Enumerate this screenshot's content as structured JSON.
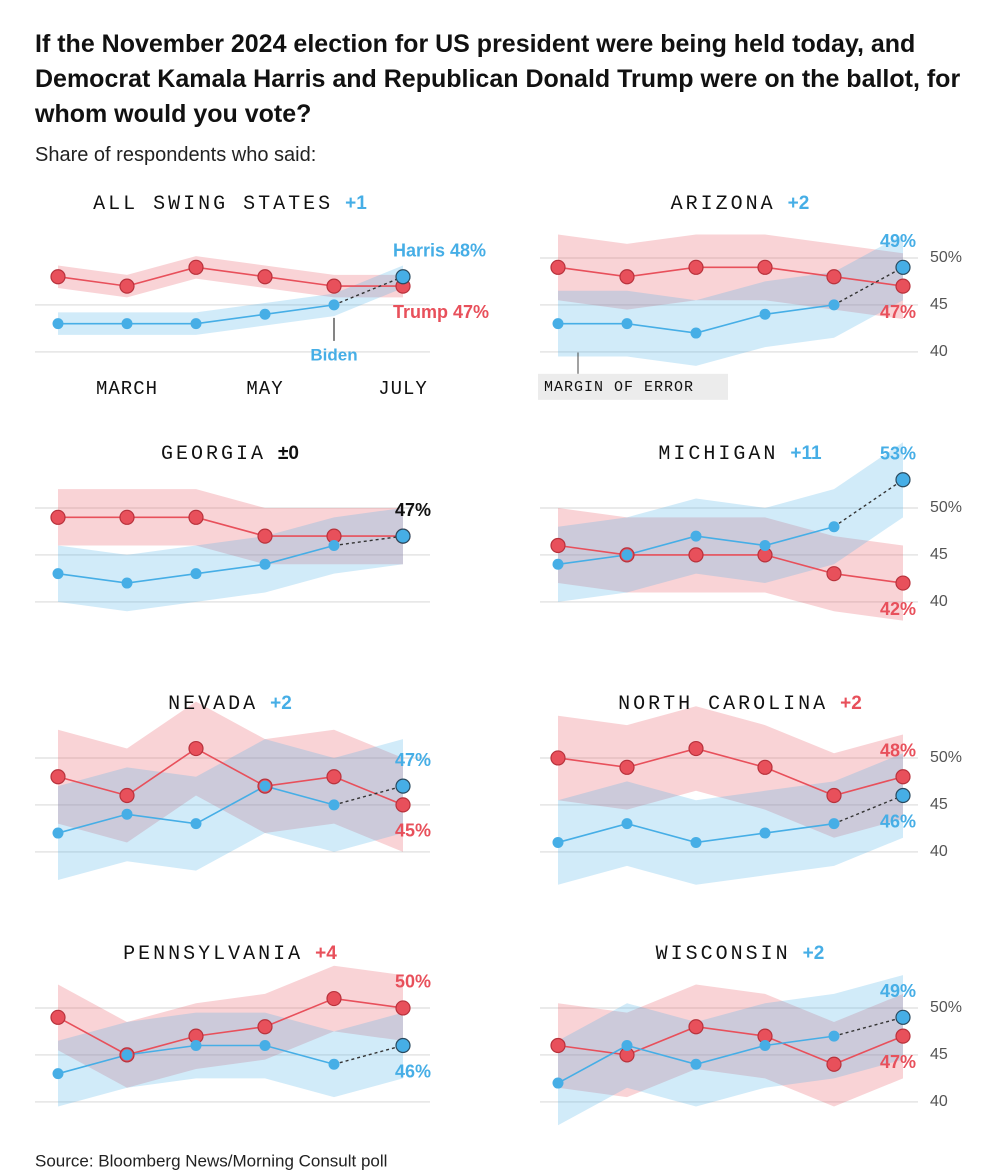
{
  "title": "If the November 2024 election for US president were being held today, and Democrat Kamala Harris and Republican Donald Trump were on the ballot, for whom would you vote?",
  "subtitle": "Share of respondents who said:",
  "source": "Source: Bloomberg News/Morning Consult poll",
  "chart_data": [
    {
      "type": "line",
      "title": "ALL SWING STATES",
      "lead": "+1",
      "lead_color": "#46aee6",
      "categories": [
        null,
        "MARCH",
        null,
        "MAY",
        null,
        "JULY"
      ],
      "ylim": [
        37,
        55
      ],
      "yticks": [
        40,
        45
      ],
      "show_ytick_labels": false,
      "margin_of_error": 1.2,
      "series": [
        {
          "name": "Trump",
          "color": "#e8505b",
          "values": [
            48,
            47,
            49,
            48,
            47,
            47
          ],
          "value_labels": [
            null,
            null,
            null,
            null,
            null,
            "Trump 47%"
          ]
        },
        {
          "name": "Biden",
          "color": "#46aee6",
          "values": [
            43,
            43,
            43,
            44,
            45,
            null
          ]
        },
        {
          "name": "Harris",
          "color": "#46aee6",
          "values": [
            null,
            null,
            null,
            null,
            null,
            48
          ],
          "value_labels": [
            null,
            null,
            null,
            null,
            null,
            "Harris 48%"
          ]
        }
      ]
    },
    {
      "type": "line",
      "title": "ARIZONA",
      "lead": "+2",
      "lead_color": "#46aee6",
      "ylim": [
        37,
        55
      ],
      "yticks": [
        40,
        45,
        {
          "value": 50,
          "label": "50%"
        }
      ],
      "show_ytick_labels": true,
      "margin_of_error": 3.5,
      "band_note": "MARGIN OF ERROR",
      "series": [
        {
          "color": "#e8505b",
          "values": [
            49,
            48,
            49,
            49,
            48,
            47
          ],
          "value_labels": [
            null,
            null,
            null,
            null,
            null,
            "47%"
          ]
        },
        {
          "color": "#46aee6",
          "values": [
            43,
            43,
            42,
            44,
            45,
            null
          ]
        },
        {
          "color": "#46aee6",
          "values": [
            null,
            null,
            null,
            null,
            null,
            49
          ],
          "value_labels": [
            null,
            null,
            null,
            null,
            null,
            "49%"
          ]
        }
      ]
    },
    {
      "type": "line",
      "title": "GEORGIA",
      "lead": "±0",
      "lead_color": "#111111",
      "ylim": [
        37,
        55
      ],
      "yticks": [
        40,
        45,
        50
      ],
      "show_ytick_labels": false,
      "margin_of_error": 3,
      "series": [
        {
          "color": "#e8505b",
          "values": [
            49,
            49,
            49,
            47,
            47,
            47
          ]
        },
        {
          "color": "#46aee6",
          "values": [
            43,
            42,
            43,
            44,
            46,
            null
          ]
        },
        {
          "color": "#46aee6",
          "label_color": "#111111",
          "values": [
            null,
            null,
            null,
            null,
            null,
            47
          ],
          "value_labels": [
            null,
            null,
            null,
            null,
            null,
            "47%"
          ]
        }
      ]
    },
    {
      "type": "line",
      "title": "MICHIGAN",
      "lead": "+11",
      "lead_color": "#46aee6",
      "ylim": [
        37,
        55
      ],
      "yticks": [
        40,
        45,
        {
          "value": 50,
          "label": "50%"
        }
      ],
      "show_ytick_labels": true,
      "margin_of_error": 4,
      "series": [
        {
          "color": "#e8505b",
          "values": [
            46,
            45,
            45,
            45,
            43,
            42
          ],
          "value_labels": [
            null,
            null,
            null,
            null,
            null,
            "42%"
          ]
        },
        {
          "color": "#46aee6",
          "values": [
            44,
            45,
            47,
            46,
            48,
            null
          ]
        },
        {
          "color": "#46aee6",
          "values": [
            null,
            null,
            null,
            null,
            null,
            53
          ],
          "value_labels": [
            null,
            null,
            null,
            null,
            null,
            "53%"
          ]
        }
      ]
    },
    {
      "type": "line",
      "title": "NEVADA",
      "lead": "+2",
      "lead_color": "#46aee6",
      "ylim": [
        37,
        55
      ],
      "yticks": [
        40,
        45,
        50
      ],
      "show_ytick_labels": false,
      "margin_of_error": 5,
      "series": [
        {
          "color": "#e8505b",
          "values": [
            48,
            46,
            51,
            47,
            48,
            45
          ],
          "value_labels": [
            null,
            null,
            null,
            null,
            null,
            "45%"
          ]
        },
        {
          "color": "#46aee6",
          "values": [
            42,
            44,
            43,
            47,
            45,
            null
          ]
        },
        {
          "color": "#46aee6",
          "values": [
            null,
            null,
            null,
            null,
            null,
            47
          ],
          "value_labels": [
            null,
            null,
            null,
            null,
            null,
            "47%"
          ]
        }
      ]
    },
    {
      "type": "line",
      "title": "NORTH CAROLINA",
      "lead": "+2",
      "lead_color": "#e8505b",
      "ylim": [
        37,
        55
      ],
      "yticks": [
        40,
        45,
        {
          "value": 50,
          "label": "50%"
        }
      ],
      "show_ytick_labels": true,
      "margin_of_error": 4.5,
      "series": [
        {
          "color": "#e8505b",
          "values": [
            50,
            49,
            51,
            49,
            46,
            48
          ],
          "value_labels": [
            null,
            null,
            null,
            null,
            null,
            "48%"
          ]
        },
        {
          "color": "#46aee6",
          "values": [
            41,
            43,
            41,
            42,
            43,
            null
          ]
        },
        {
          "color": "#46aee6",
          "values": [
            null,
            null,
            null,
            null,
            null,
            46
          ],
          "value_labels": [
            null,
            null,
            null,
            null,
            null,
            "46%"
          ]
        }
      ]
    },
    {
      "type": "line",
      "title": "PENNSYLVANIA",
      "lead": "+4",
      "lead_color": "#e8505b",
      "ylim": [
        37,
        55
      ],
      "yticks": [
        40,
        45,
        50
      ],
      "show_ytick_labels": false,
      "margin_of_error": 3.5,
      "series": [
        {
          "color": "#e8505b",
          "values": [
            49,
            45,
            47,
            48,
            51,
            50
          ],
          "value_labels": [
            null,
            null,
            null,
            null,
            null,
            "50%"
          ]
        },
        {
          "color": "#46aee6",
          "values": [
            43,
            45,
            46,
            46,
            44,
            null
          ]
        },
        {
          "color": "#46aee6",
          "values": [
            null,
            null,
            null,
            null,
            null,
            46
          ],
          "value_labels": [
            null,
            null,
            null,
            null,
            null,
            "46%"
          ]
        }
      ]
    },
    {
      "type": "line",
      "title": "WISCONSIN",
      "lead": "+2",
      "lead_color": "#46aee6",
      "ylim": [
        37,
        55
      ],
      "yticks": [
        40,
        45,
        {
          "value": 50,
          "label": "50%"
        }
      ],
      "show_ytick_labels": true,
      "margin_of_error": 4.5,
      "series": [
        {
          "color": "#e8505b",
          "values": [
            46,
            45,
            48,
            47,
            44,
            47
          ],
          "value_labels": [
            null,
            null,
            null,
            null,
            null,
            "47%"
          ]
        },
        {
          "color": "#46aee6",
          "values": [
            42,
            46,
            44,
            46,
            47,
            null
          ]
        },
        {
          "color": "#46aee6",
          "values": [
            null,
            null,
            null,
            null,
            null,
            49
          ],
          "value_labels": [
            null,
            null,
            null,
            null,
            null,
            "49%"
          ]
        }
      ]
    }
  ]
}
